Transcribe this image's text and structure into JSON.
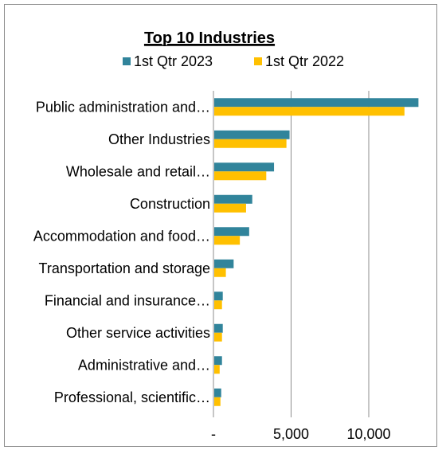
{
  "chart_data": {
    "type": "bar",
    "orientation": "horizontal",
    "title": "Top 10 Industries",
    "categories": [
      "Public administration and…",
      "Other Industries",
      "Wholesale and retail…",
      "Construction",
      "Accommodation and food…",
      "Transportation and storage",
      "Financial and insurance…",
      "Other service activities",
      "Administrative and…",
      "Professional, scientific…"
    ],
    "series": [
      {
        "name": "1st Qtr 2023",
        "color": "#31849b",
        "values": [
          13200,
          4900,
          3900,
          2500,
          2300,
          1300,
          600,
          600,
          550,
          500
        ]
      },
      {
        "name": "1st Qtr 2022",
        "color": "#ffc000",
        "values": [
          12300,
          4700,
          3400,
          2100,
          1700,
          800,
          550,
          550,
          400,
          450
        ]
      }
    ],
    "xaxis": {
      "ticks": [
        0,
        5000,
        10000
      ],
      "tick_labels": [
        "-",
        "5,000",
        "10,000"
      ],
      "max": 14000
    },
    "grid": "vertical",
    "legend": "top",
    "xlabel": "",
    "ylabel": ""
  }
}
